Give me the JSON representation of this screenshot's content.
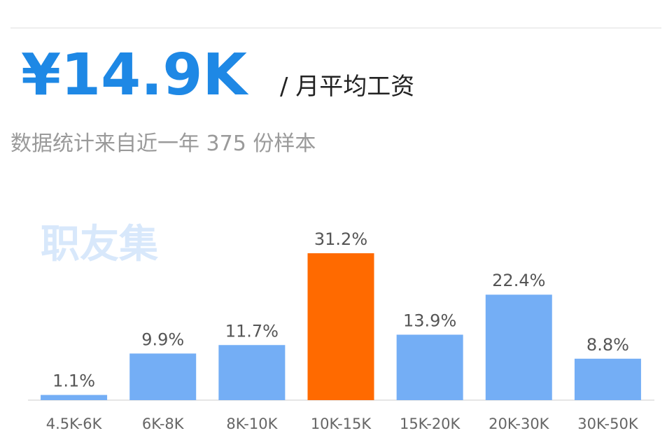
{
  "chart_data": {
    "type": "bar",
    "title": "¥14.9K",
    "title_suffix": "/ 月平均工资",
    "subtitle": "数据统计来自近一年 375 份样本",
    "watermark": "职友集",
    "categories": [
      "4.5K-6K",
      "6K-8K",
      "8K-10K",
      "10K-15K",
      "15K-20K",
      "20K-30K",
      "30K-50K"
    ],
    "values": [
      1.1,
      9.9,
      11.7,
      31.2,
      13.9,
      22.4,
      8.8
    ],
    "value_labels": [
      "1.1%",
      "9.9%",
      "11.7%",
      "31.2%",
      "13.9%",
      "22.4%",
      "8.8%"
    ],
    "colors": [
      "#74aef5",
      "#74aef5",
      "#74aef5",
      "#ff6a00",
      "#74aef5",
      "#74aef5",
      "#74aef5"
    ]
  }
}
